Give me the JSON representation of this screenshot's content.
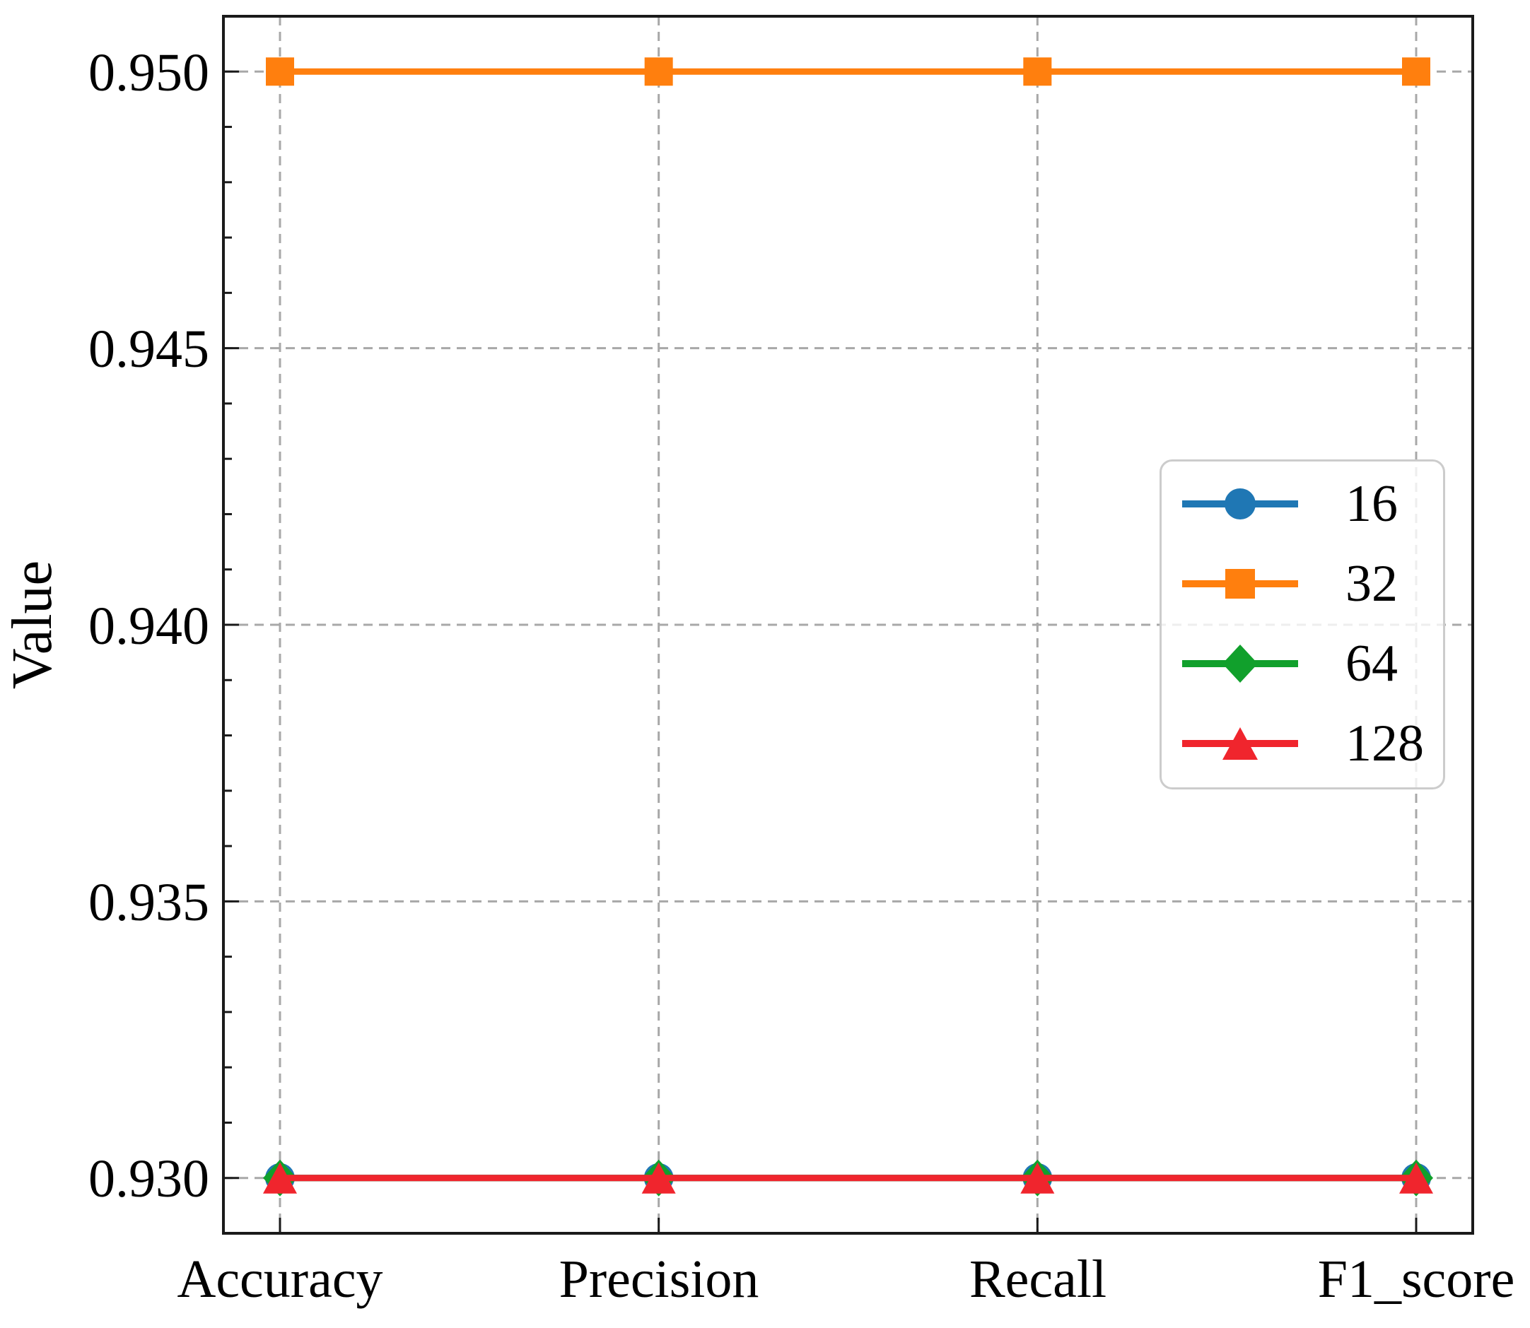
{
  "figure": {
    "background": "#ffffff",
    "text_color": "#000000"
  },
  "chart_data": {
    "type": "line",
    "title": "",
    "xlabel": "",
    "ylabel": "Value",
    "categories": [
      "Accuracy",
      "Precision",
      "Recall",
      "F1_score"
    ],
    "series": [
      {
        "name": "16",
        "color": "#1f77b4",
        "marker": "circle",
        "values": [
          0.93,
          0.93,
          0.93,
          0.93
        ]
      },
      {
        "name": "32",
        "color": "#ff7f0e",
        "marker": "square",
        "values": [
          0.95,
          0.95,
          0.95,
          0.95
        ]
      },
      {
        "name": "64",
        "color": "#11a02c",
        "marker": "diamond",
        "values": [
          0.93,
          0.93,
          0.93,
          0.93
        ]
      },
      {
        "name": "128",
        "color": "#f0252d",
        "marker": "triangle",
        "values": [
          0.93,
          0.93,
          0.93,
          0.93
        ]
      }
    ],
    "ylim": [
      0.929,
      0.951
    ],
    "yticks": [
      0.93,
      0.935,
      0.94,
      0.945,
      0.95
    ],
    "ytick_labels_top_to_bottom": [
      "0.950",
      "0.945",
      "0.940",
      "0.935",
      "0.930"
    ],
    "minor_tick_step": 0.001,
    "grid": true,
    "grid_style": "dashed",
    "grid_color": "#a8a8a8",
    "axis_color": "#1a1a1a",
    "legend_position": "center right",
    "legend_labels": [
      "16",
      "32",
      "64",
      "128"
    ]
  }
}
